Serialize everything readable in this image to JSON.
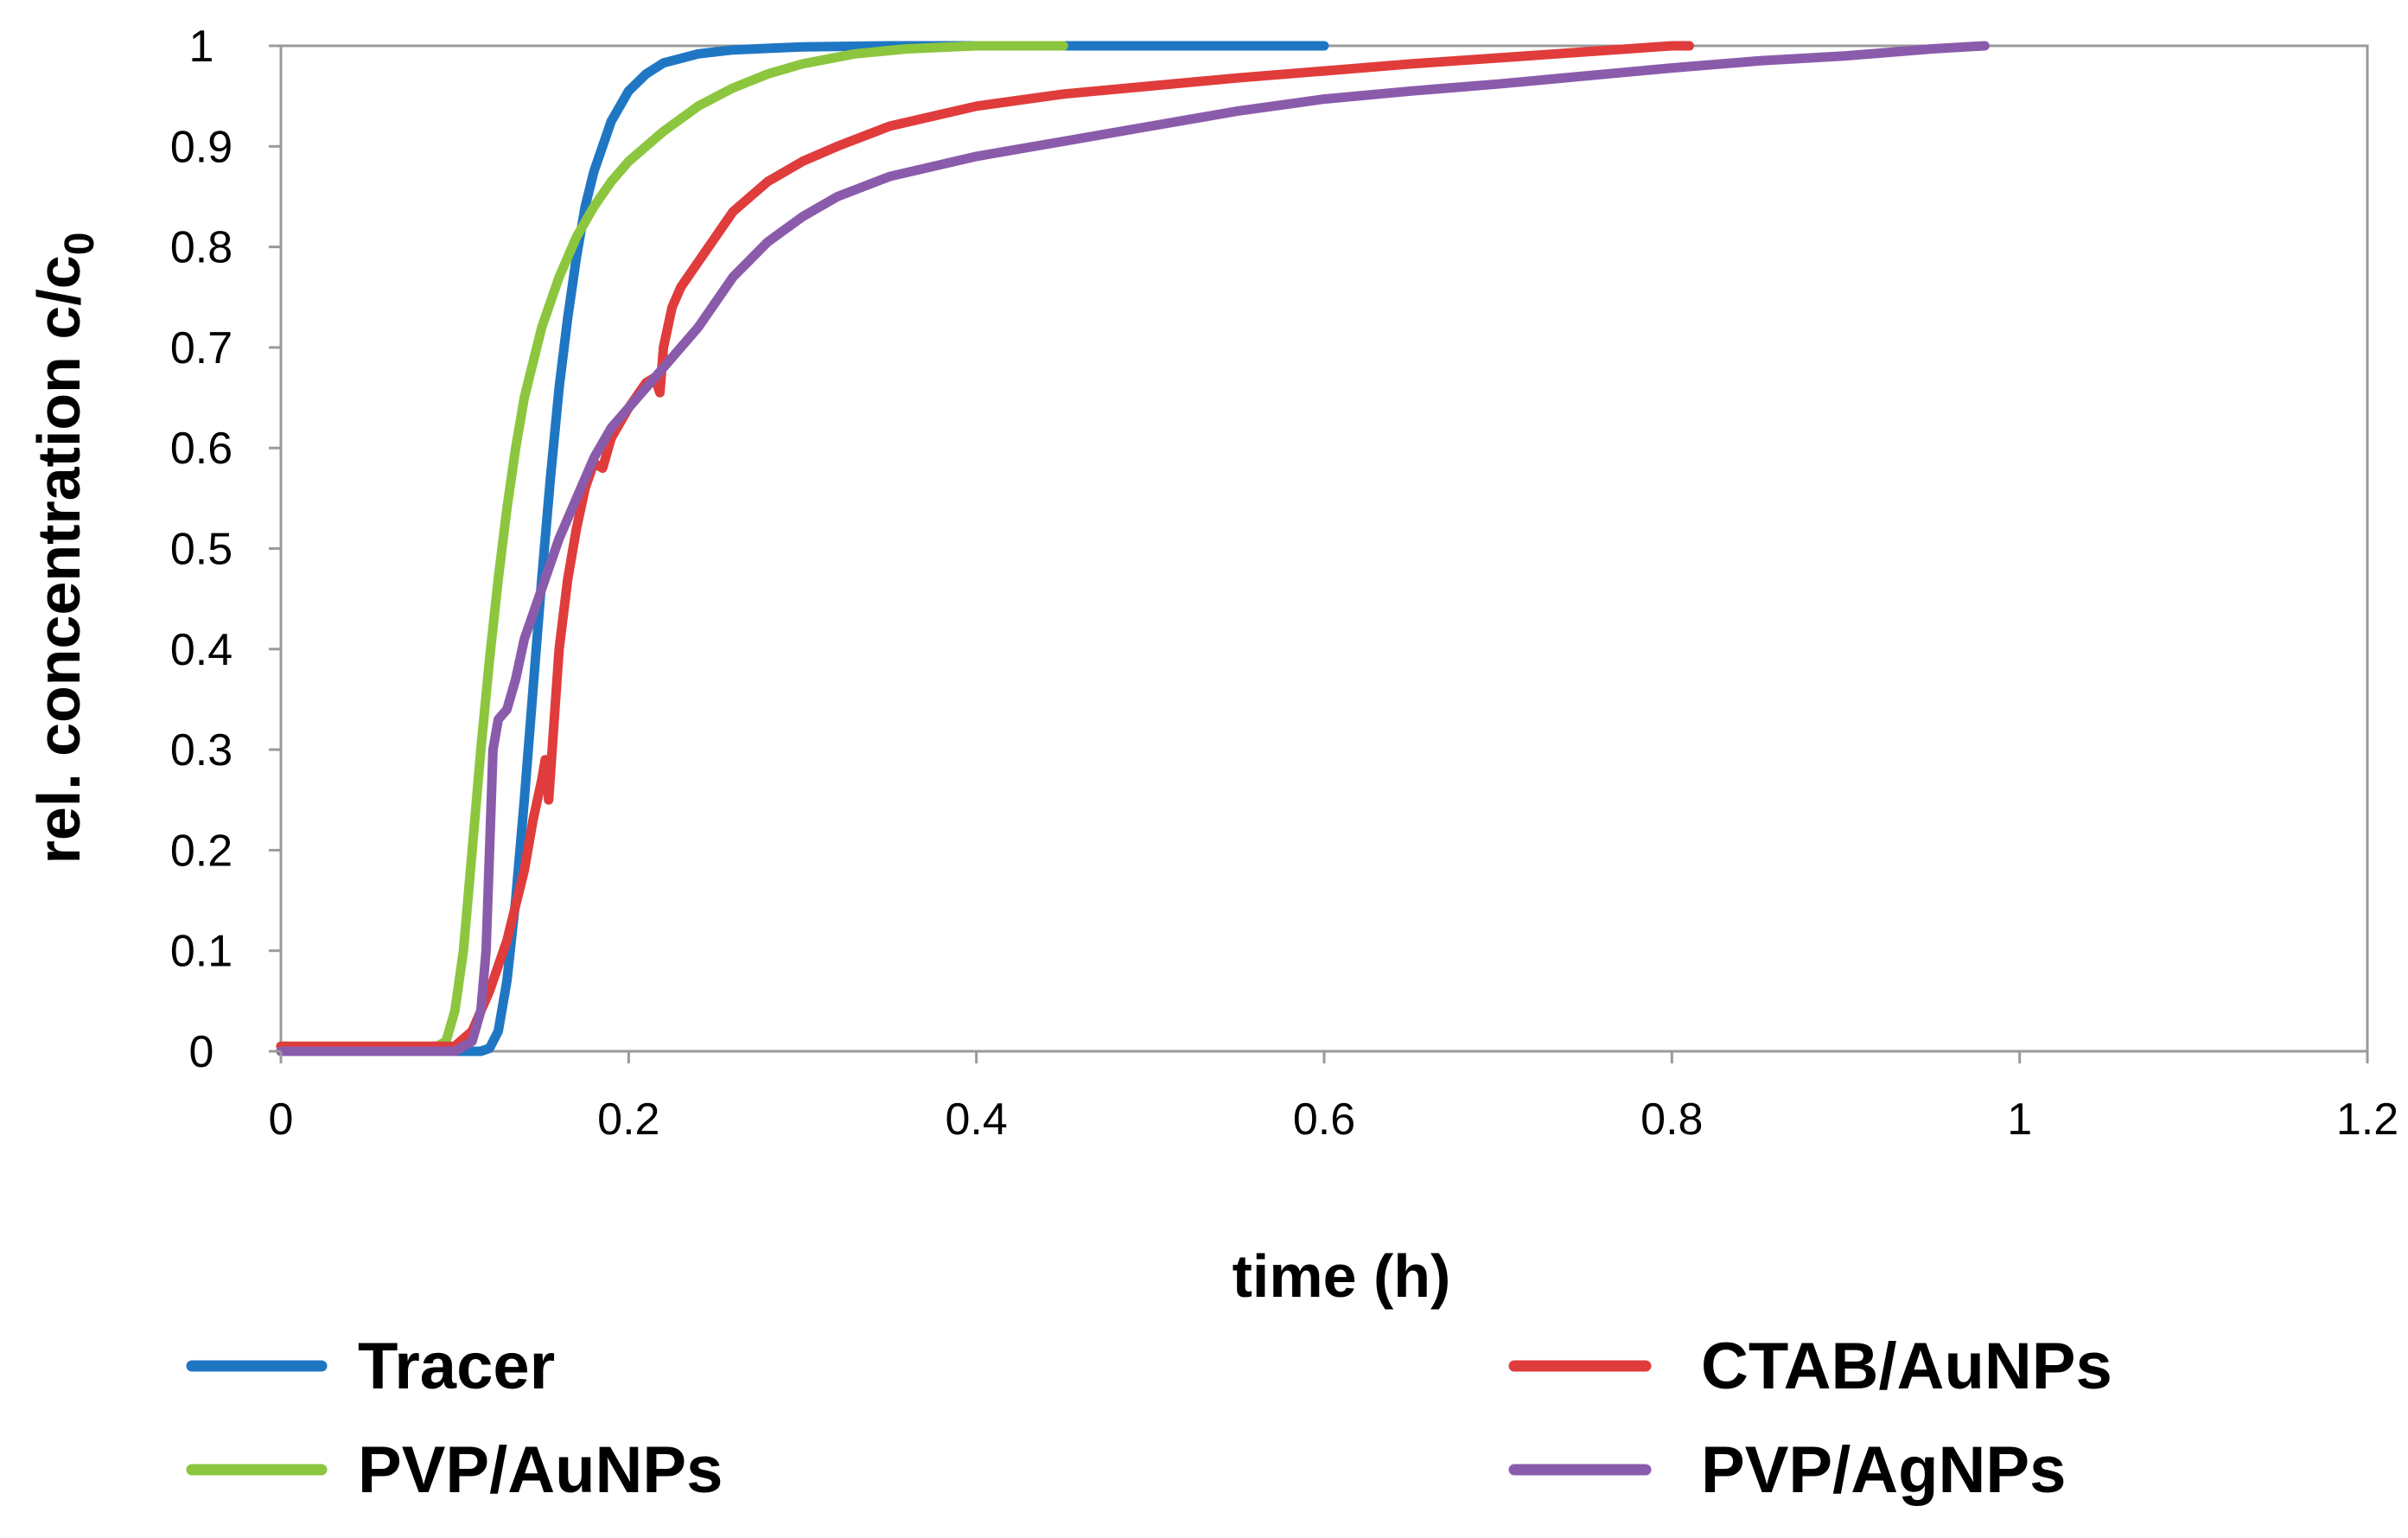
{
  "chart_data": {
    "type": "line",
    "title": "",
    "xlabel": "time (h)",
    "ylabel_main": "rel. concentration c/c",
    "ylabel_subscript": "0",
    "xlim": [
      0,
      1.2
    ],
    "ylim": [
      0,
      1
    ],
    "xticks": [
      {
        "value": 0,
        "label": "0"
      },
      {
        "value": 0.2,
        "label": "0.2"
      },
      {
        "value": 0.4,
        "label": "0.4"
      },
      {
        "value": 0.6,
        "label": "0.6"
      },
      {
        "value": 0.8,
        "label": "0.8"
      },
      {
        "value": 1,
        "label": "1"
      },
      {
        "value": 1.2,
        "label": "1.2"
      }
    ],
    "yticks": [
      {
        "value": 0,
        "label": "0"
      },
      {
        "value": 0.1,
        "label": "0.1"
      },
      {
        "value": 0.2,
        "label": "0.2"
      },
      {
        "value": 0.3,
        "label": "0.3"
      },
      {
        "value": 0.4,
        "label": "0.4"
      },
      {
        "value": 0.5,
        "label": "0.5"
      },
      {
        "value": 0.6,
        "label": "0.6"
      },
      {
        "value": 0.7,
        "label": "0.7"
      },
      {
        "value": 0.8,
        "label": "0.8"
      },
      {
        "value": 0.9,
        "label": "0.9"
      },
      {
        "value": 1,
        "label": "1"
      }
    ],
    "grid": false,
    "legend_position": "bottom",
    "series": [
      {
        "name": "Tracer",
        "color": "#1f77c4",
        "points": [
          [
            0,
            0
          ],
          [
            0.1,
            0
          ],
          [
            0.11,
            0
          ],
          [
            0.115,
            0
          ],
          [
            0.12,
            0.003
          ],
          [
            0.125,
            0.02
          ],
          [
            0.13,
            0.07
          ],
          [
            0.135,
            0.15
          ],
          [
            0.14,
            0.25
          ],
          [
            0.145,
            0.36
          ],
          [
            0.15,
            0.47
          ],
          [
            0.155,
            0.57
          ],
          [
            0.16,
            0.66
          ],
          [
            0.165,
            0.73
          ],
          [
            0.17,
            0.79
          ],
          [
            0.175,
            0.84
          ],
          [
            0.18,
            0.875
          ],
          [
            0.19,
            0.925
          ],
          [
            0.2,
            0.955
          ],
          [
            0.21,
            0.972
          ],
          [
            0.22,
            0.983
          ],
          [
            0.24,
            0.992
          ],
          [
            0.26,
            0.996
          ],
          [
            0.3,
            0.999
          ],
          [
            0.35,
            1
          ],
          [
            0.5,
            1
          ],
          [
            0.6,
            1
          ]
        ]
      },
      {
        "name": "PVP/AuNPs",
        "color": "#8cc63e",
        "points": [
          [
            0,
            0.005
          ],
          [
            0.09,
            0.005
          ],
          [
            0.095,
            0.01
          ],
          [
            0.1,
            0.04
          ],
          [
            0.105,
            0.1
          ],
          [
            0.11,
            0.2
          ],
          [
            0.115,
            0.3
          ],
          [
            0.12,
            0.39
          ],
          [
            0.125,
            0.47
          ],
          [
            0.13,
            0.54
          ],
          [
            0.135,
            0.6
          ],
          [
            0.14,
            0.65
          ],
          [
            0.15,
            0.72
          ],
          [
            0.16,
            0.77
          ],
          [
            0.17,
            0.81
          ],
          [
            0.18,
            0.84
          ],
          [
            0.19,
            0.865
          ],
          [
            0.2,
            0.885
          ],
          [
            0.22,
            0.915
          ],
          [
            0.24,
            0.94
          ],
          [
            0.26,
            0.958
          ],
          [
            0.28,
            0.972
          ],
          [
            0.3,
            0.982
          ],
          [
            0.33,
            0.992
          ],
          [
            0.36,
            0.997
          ],
          [
            0.4,
            1
          ],
          [
            0.45,
            1
          ]
        ]
      },
      {
        "name": "CTAB/AuNPs",
        "color": "#e03c3c",
        "points": [
          [
            0,
            0.005
          ],
          [
            0.1,
            0.005
          ],
          [
            0.11,
            0.02
          ],
          [
            0.12,
            0.06
          ],
          [
            0.13,
            0.11
          ],
          [
            0.14,
            0.18
          ],
          [
            0.145,
            0.23
          ],
          [
            0.15,
            0.27
          ],
          [
            0.152,
            0.29
          ],
          [
            0.154,
            0.25
          ],
          [
            0.156,
            0.3
          ],
          [
            0.16,
            0.4
          ],
          [
            0.165,
            0.47
          ],
          [
            0.17,
            0.52
          ],
          [
            0.175,
            0.56
          ],
          [
            0.18,
            0.585
          ],
          [
            0.185,
            0.58
          ],
          [
            0.19,
            0.61
          ],
          [
            0.2,
            0.64
          ],
          [
            0.21,
            0.665
          ],
          [
            0.215,
            0.67
          ],
          [
            0.218,
            0.655
          ],
          [
            0.22,
            0.7
          ],
          [
            0.225,
            0.74
          ],
          [
            0.23,
            0.76
          ],
          [
            0.24,
            0.785
          ],
          [
            0.26,
            0.835
          ],
          [
            0.28,
            0.865
          ],
          [
            0.3,
            0.885
          ],
          [
            0.32,
            0.9
          ],
          [
            0.35,
            0.92
          ],
          [
            0.4,
            0.94
          ],
          [
            0.45,
            0.952
          ],
          [
            0.5,
            0.96
          ],
          [
            0.55,
            0.968
          ],
          [
            0.6,
            0.975
          ],
          [
            0.65,
            0.982
          ],
          [
            0.7,
            0.988
          ],
          [
            0.75,
            0.994
          ],
          [
            0.8,
            1
          ],
          [
            0.81,
            1
          ]
        ]
      },
      {
        "name": "PVP/AgNPs",
        "color": "#8b5bab",
        "points": [
          [
            0,
            0
          ],
          [
            0.1,
            0
          ],
          [
            0.11,
            0.01
          ],
          [
            0.115,
            0.04
          ],
          [
            0.118,
            0.1
          ],
          [
            0.12,
            0.2
          ],
          [
            0.122,
            0.3
          ],
          [
            0.125,
            0.33
          ],
          [
            0.13,
            0.34
          ],
          [
            0.135,
            0.37
          ],
          [
            0.14,
            0.41
          ],
          [
            0.15,
            0.46
          ],
          [
            0.16,
            0.51
          ],
          [
            0.17,
            0.55
          ],
          [
            0.18,
            0.59
          ],
          [
            0.19,
            0.62
          ],
          [
            0.2,
            0.64
          ],
          [
            0.21,
            0.66
          ],
          [
            0.22,
            0.68
          ],
          [
            0.23,
            0.7
          ],
          [
            0.24,
            0.72
          ],
          [
            0.26,
            0.77
          ],
          [
            0.28,
            0.805
          ],
          [
            0.3,
            0.83
          ],
          [
            0.32,
            0.85
          ],
          [
            0.35,
            0.87
          ],
          [
            0.4,
            0.89
          ],
          [
            0.45,
            0.905
          ],
          [
            0.5,
            0.92
          ],
          [
            0.55,
            0.935
          ],
          [
            0.6,
            0.947
          ],
          [
            0.65,
            0.955
          ],
          [
            0.7,
            0.962
          ],
          [
            0.75,
            0.97
          ],
          [
            0.8,
            0.978
          ],
          [
            0.85,
            0.985
          ],
          [
            0.9,
            0.99
          ],
          [
            0.95,
            0.997
          ],
          [
            0.98,
            1
          ]
        ]
      }
    ]
  }
}
